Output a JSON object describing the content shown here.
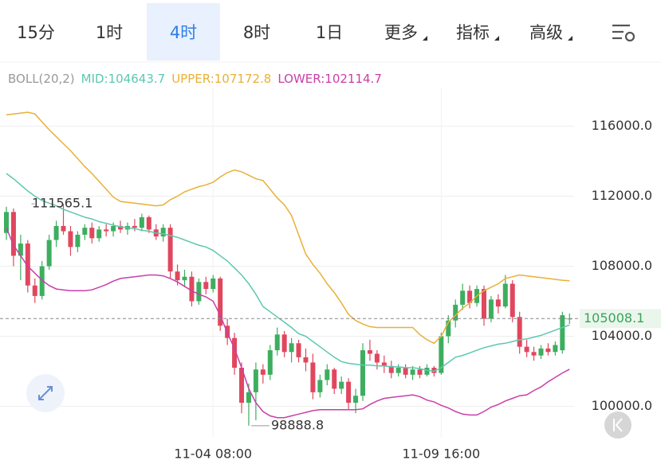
{
  "tabs": [
    "15分",
    "1时",
    "4时",
    "8时",
    "1日",
    "更多",
    "指标",
    "高级"
  ],
  "selected_tab": "4时",
  "chart_data": {
    "type": "candlestick",
    "indicator": "BOLL(20,2)",
    "categories": [
      null,
      null,
      null,
      null,
      null,
      null,
      null,
      null,
      null,
      null,
      null,
      null,
      null,
      null,
      null,
      null,
      null,
      null,
      null,
      null,
      null,
      null,
      null,
      null,
      null,
      null,
      null,
      null,
      null,
      "11-04 08:00",
      null,
      null,
      null,
      null,
      null,
      null,
      null,
      null,
      null,
      null,
      null,
      null,
      null,
      null,
      null,
      null,
      null,
      null,
      null,
      null,
      null,
      null,
      null,
      null,
      null,
      null,
      null,
      null,
      null,
      null,
      null,
      "11-09 16:00",
      null,
      null,
      null,
      null,
      null,
      null,
      null,
      null,
      null,
      null,
      null,
      null,
      null,
      null,
      null,
      null,
      null,
      null
    ],
    "open": [
      109900,
      111100,
      108600,
      109300,
      106900,
      106300,
      108000,
      109500,
      110300,
      110000,
      109100,
      109800,
      110200,
      109600,
      110100,
      110000,
      110300,
      110100,
      110300,
      110200,
      110800,
      110100,
      109700,
      110200,
      107700,
      107200,
      107400,
      106000,
      107100,
      106700,
      107300,
      104600,
      103900,
      102200,
      100200,
      100800,
      102100,
      101800,
      103200,
      104100,
      103100,
      103600,
      102800,
      102500,
      100800,
      101500,
      102100,
      101000,
      101400,
      100200,
      100600,
      103200,
      103000,
      102500,
      102300,
      101900,
      102200,
      101800,
      102100,
      101800,
      102200,
      101900,
      104000,
      104900,
      105800,
      106600,
      105900,
      106700,
      105000,
      106100,
      105700,
      107000,
      105100,
      103400,
      103100,
      102900,
      103300,
      103100,
      103200,
      105000
    ],
    "high": [
      111400,
      111300,
      109800,
      109500,
      107300,
      108300,
      109800,
      110600,
      111565.1,
      110300,
      110000,
      110400,
      110500,
      110300,
      110400,
      110500,
      110600,
      110500,
      110700,
      111000,
      110900,
      110400,
      110400,
      110400,
      108100,
      107800,
      107700,
      107300,
      107400,
      107500,
      107400,
      105000,
      104200,
      102500,
      101300,
      102500,
      102400,
      103500,
      104500,
      104300,
      103900,
      103800,
      103300,
      103000,
      101800,
      102400,
      102200,
      101700,
      101600,
      101000,
      103600,
      103800,
      103200,
      102900,
      102600,
      102400,
      102400,
      102300,
      102300,
      102400,
      102300,
      104200,
      105200,
      106100,
      107000,
      106900,
      106900,
      106900,
      106300,
      106400,
      107500,
      107200,
      105400,
      103800,
      103400,
      103500,
      103600,
      103700,
      105400,
      105300
    ],
    "low": [
      109500,
      108000,
      107200,
      106500,
      105900,
      106100,
      107800,
      109100,
      109800,
      108600,
      108800,
      109500,
      109300,
      109400,
      109700,
      109700,
      109900,
      109800,
      110000,
      110000,
      109900,
      109500,
      109400,
      107300,
      106900,
      106800,
      105700,
      105800,
      106400,
      106500,
      104300,
      103500,
      101800,
      99600,
      98888.8,
      99200,
      101300,
      101500,
      102900,
      102800,
      102500,
      102500,
      102000,
      100400,
      100500,
      101200,
      100700,
      100700,
      99800,
      99600,
      100300,
      102600,
      102100,
      101900,
      101600,
      101700,
      101600,
      101500,
      101600,
      101700,
      101700,
      101800,
      103600,
      104500,
      105500,
      105600,
      105700,
      104600,
      104800,
      105300,
      105600,
      104800,
      103000,
      102800,
      102600,
      102700,
      102900,
      102900,
      103000,
      104700
    ],
    "close": [
      111100,
      108600,
      109300,
      106900,
      106300,
      108000,
      109500,
      110300,
      110000,
      109100,
      109800,
      110200,
      109600,
      110100,
      110000,
      110300,
      110100,
      110300,
      110200,
      110800,
      110100,
      109700,
      110200,
      107700,
      107200,
      107400,
      106000,
      107100,
      106700,
      107300,
      104600,
      103900,
      102200,
      100200,
      100800,
      102100,
      101800,
      103200,
      104100,
      103100,
      103600,
      102800,
      102500,
      100800,
      101500,
      102100,
      101000,
      101400,
      100200,
      100600,
      103200,
      103000,
      102500,
      102300,
      101900,
      102200,
      101800,
      102100,
      101800,
      102200,
      101900,
      104000,
      104900,
      105800,
      106600,
      105900,
      106700,
      105000,
      106100,
      105700,
      107000,
      105100,
      103400,
      103100,
      102900,
      103300,
      103100,
      103500,
      105200,
      105008.1
    ],
    "up_color": "#3dae5f",
    "down_color": "#e0475f",
    "series": [
      {
        "name": "MID:104643.7",
        "color": "#5cc8b0",
        "values": [
          113300,
          113000,
          112650,
          112300,
          112000,
          111750,
          111600,
          111450,
          111250,
          111100,
          110950,
          110800,
          110700,
          110550,
          110450,
          110350,
          110250,
          110200,
          110150,
          110050,
          110000,
          109900,
          109850,
          109750,
          109650,
          109500,
          109350,
          109200,
          109100,
          108900,
          108600,
          108300,
          107900,
          107500,
          107000,
          106400,
          105700,
          105400,
          105100,
          104800,
          104500,
          104150,
          104000,
          103700,
          103400,
          103100,
          102800,
          102550,
          102450,
          102400,
          102350,
          102350,
          102300,
          102300,
          102250,
          102250,
          102200,
          102200,
          102150,
          102050,
          102000,
          102200,
          102500,
          102800,
          102900,
          103050,
          103200,
          103350,
          103450,
          103550,
          103600,
          103700,
          103800,
          103850,
          103950,
          104050,
          104200,
          104350,
          104500,
          104643.7
        ]
      },
      {
        "name": "UPPER:107172.8",
        "color": "#e8b038",
        "values": [
          116650,
          116700,
          116750,
          116800,
          116700,
          116250,
          115800,
          115400,
          115000,
          114600,
          114150,
          113700,
          113300,
          112850,
          112400,
          111950,
          111700,
          111650,
          111600,
          111550,
          111500,
          111450,
          111500,
          111800,
          112000,
          112250,
          112400,
          112550,
          112650,
          112800,
          113100,
          113350,
          113500,
          113400,
          113200,
          113000,
          112900,
          112400,
          111900,
          111500,
          110900,
          109800,
          108700,
          108100,
          107600,
          107000,
          106500,
          105900,
          105250,
          104900,
          104700,
          104550,
          104500,
          104500,
          104500,
          104500,
          104500,
          104500,
          104100,
          103800,
          103600,
          104000,
          104800,
          105200,
          105600,
          105900,
          106300,
          106600,
          106800,
          107000,
          107300,
          107400,
          107500,
          107450,
          107400,
          107350,
          107300,
          107250,
          107200,
          107172.8
        ]
      },
      {
        "name": "LOWER:102114.7",
        "color": "#c93fa8",
        "values": [
          110200,
          109200,
          108600,
          108000,
          107600,
          107200,
          106900,
          106700,
          106650,
          106600,
          106600,
          106600,
          106650,
          106800,
          106950,
          107150,
          107300,
          107350,
          107400,
          107450,
          107500,
          107500,
          107450,
          107300,
          107100,
          106850,
          106600,
          106400,
          106250,
          106000,
          105200,
          104200,
          103300,
          102200,
          101000,
          100200,
          99700,
          99450,
          99350,
          99350,
          99450,
          99550,
          99650,
          99750,
          99800,
          99800,
          99800,
          99800,
          99800,
          99800,
          99850,
          100100,
          100300,
          100450,
          100500,
          100550,
          100600,
          100650,
          100550,
          100350,
          100250,
          100050,
          99900,
          99700,
          99550,
          99500,
          99500,
          99700,
          99950,
          100100,
          100300,
          100450,
          100600,
          100650,
          100900,
          101100,
          101400,
          101650,
          101900,
          102114.7
        ]
      }
    ],
    "ylim": [
      98200,
      117300
    ],
    "yticks": [
      {
        "value": 100000,
        "label": "100000.0"
      },
      {
        "value": 104000,
        "label": "104000.0"
      },
      {
        "value": 108000,
        "label": "108000.0"
      },
      {
        "value": 112000,
        "label": "112000.0"
      },
      {
        "value": 116000,
        "label": "116000.0"
      }
    ],
    "grid": true,
    "current_price": 105008.1,
    "max_label": 111565.1,
    "min_label": 98888.8
  }
}
